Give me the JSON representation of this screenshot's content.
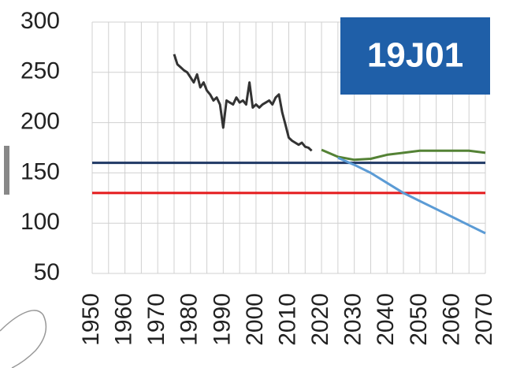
{
  "chart_data": {
    "type": "line",
    "label": "19J01",
    "xlim": [
      1950,
      2070
    ],
    "xticks": [
      1950,
      1960,
      1970,
      1980,
      1990,
      2000,
      2010,
      2020,
      2030,
      2040,
      2050,
      2060,
      2070
    ],
    "x_minor_ticks": [
      1955,
      1965,
      1975,
      1985,
      1995,
      2005,
      2015,
      2025,
      2035,
      2045,
      2055,
      2065
    ],
    "ylim": [
      50,
      300
    ],
    "yticks": [
      50,
      100,
      150,
      200,
      250,
      300
    ],
    "grid": true,
    "reference_lines": [
      {
        "value": 160,
        "color": "#1f3864"
      },
      {
        "value": 130,
        "color": "#e41a1c"
      }
    ],
    "series": [
      {
        "color": "#333333",
        "x": [
          1975,
          1976,
          1977,
          1978,
          1979,
          1980,
          1981,
          1982,
          1983,
          1984,
          1985,
          1986,
          1987,
          1988,
          1989,
          1990,
          1991,
          1992,
          1993,
          1994,
          1995,
          1996,
          1997,
          1998,
          1999,
          2000,
          2001,
          2002,
          2003,
          2004,
          2005,
          2006,
          2007,
          2008,
          2009,
          2010,
          2011,
          2012,
          2013,
          2014,
          2015,
          2016,
          2017
        ],
        "values": [
          268,
          258,
          255,
          252,
          250,
          245,
          240,
          248,
          235,
          240,
          232,
          228,
          222,
          225,
          218,
          195,
          222,
          220,
          218,
          225,
          220,
          222,
          218,
          240,
          215,
          218,
          215,
          218,
          220,
          222,
          218,
          225,
          228,
          210,
          198,
          185,
          182,
          180,
          178,
          180,
          176,
          175,
          172
        ]
      },
      {
        "color": "#548235",
        "x": [
          2020,
          2025,
          2030,
          2035,
          2040,
          2045,
          2050,
          2055,
          2060,
          2065,
          2070
        ],
        "values": [
          173,
          166,
          163,
          164,
          168,
          170,
          172,
          172,
          172,
          172,
          170
        ]
      },
      {
        "color": "#5b9bd5",
        "x": [
          2025,
          2030,
          2035,
          2040,
          2045,
          2050,
          2055,
          2060,
          2065,
          2070
        ],
        "values": [
          165,
          158,
          150,
          140,
          130,
          122,
          114,
          106,
          98,
          90
        ]
      }
    ]
  }
}
